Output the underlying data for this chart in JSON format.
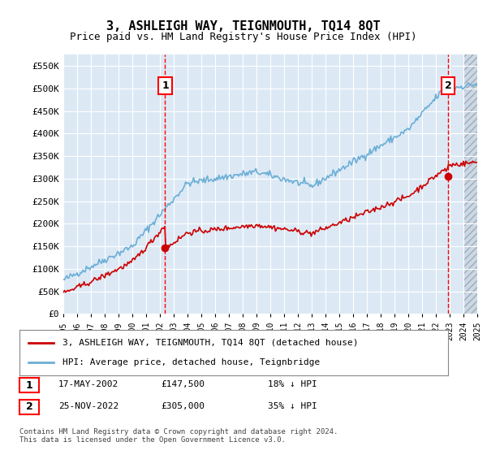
{
  "title": "3, ASHLEIGH WAY, TEIGNMOUTH, TQ14 8QT",
  "subtitle": "Price paid vs. HM Land Registry's House Price Index (HPI)",
  "ylim": [
    0,
    575000
  ],
  "yticks": [
    0,
    50000,
    100000,
    150000,
    200000,
    250000,
    300000,
    350000,
    400000,
    450000,
    500000,
    550000
  ],
  "background_color": "#dce9f5",
  "grid_color": "#ffffff",
  "hpi_color": "#6baed6",
  "price_color": "#cc0000",
  "transaction1": {
    "date_num": 2002.38,
    "price": 147500,
    "label": "1"
  },
  "transaction2": {
    "date_num": 2022.9,
    "price": 305000,
    "label": "2"
  },
  "legend_label_price": "3, ASHLEIGH WAY, TEIGNMOUTH, TQ14 8QT (detached house)",
  "legend_label_hpi": "HPI: Average price, detached house, Teignbridge",
  "table_rows": [
    {
      "num": "1",
      "date": "17-MAY-2002",
      "price": "£147,500",
      "hpi": "18% ↓ HPI"
    },
    {
      "num": "2",
      "date": "25-NOV-2022",
      "price": "£305,000",
      "hpi": "35% ↓ HPI"
    }
  ],
  "footnote": "Contains HM Land Registry data © Crown copyright and database right 2024.\nThis data is licensed under the Open Government Licence v3.0.",
  "xmin": 1995,
  "xmax": 2025
}
